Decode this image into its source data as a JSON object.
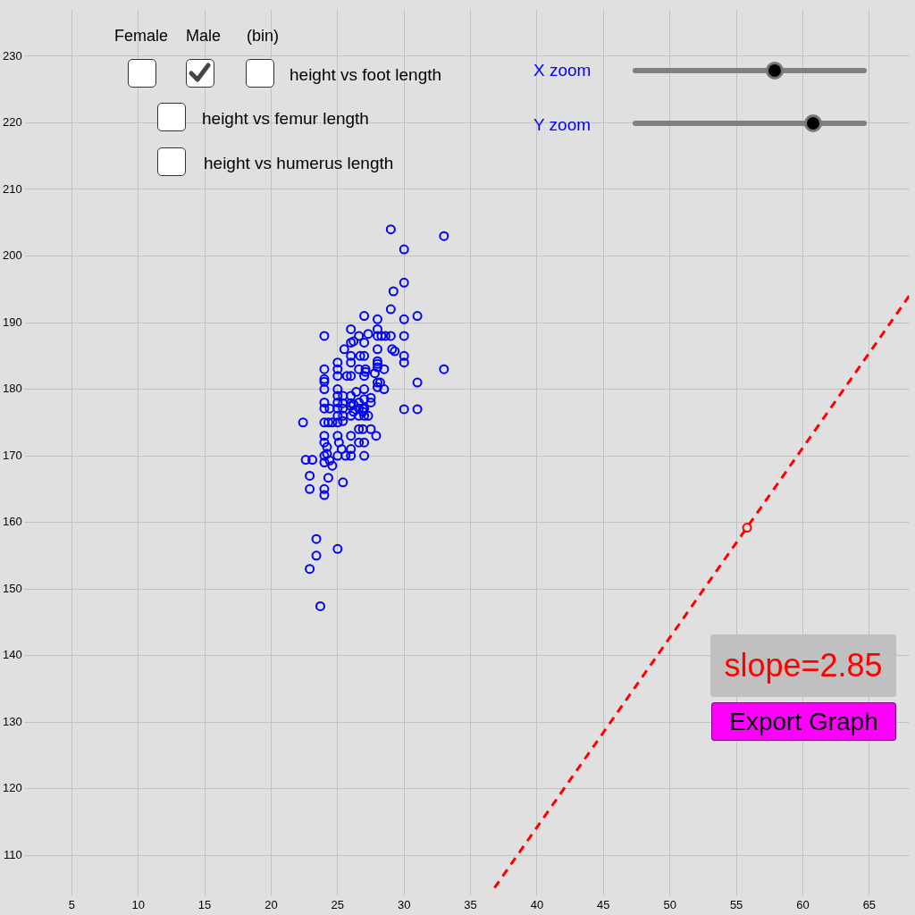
{
  "chart_data": {
    "type": "scatter",
    "xlim": [
      2,
      68
    ],
    "ylim": [
      105,
      237
    ],
    "xticks": [
      5,
      10,
      15,
      20,
      25,
      30,
      35,
      40,
      45,
      50,
      55,
      60,
      65
    ],
    "yticks": [
      110,
      120,
      130,
      140,
      150,
      160,
      170,
      180,
      190,
      200,
      210,
      220,
      230
    ],
    "grid": true,
    "annotations": [
      "Female",
      "Male",
      "(bin)",
      "height vs foot length",
      "height vs femur length",
      "height vs humerus length",
      "X zoom",
      "Y zoom",
      "slope=2.85",
      "Export Graph"
    ],
    "series": [
      {
        "color": "#0000ff",
        "marker": "circle",
        "x": [
          29,
          33,
          30,
          30,
          29.2,
          29,
          27,
          28,
          30,
          31,
          26,
          28,
          24,
          26.6,
          27.3,
          28,
          28.3,
          28.6,
          29,
          30,
          26,
          26.2,
          27,
          25.5,
          28,
          29.1,
          29.3,
          26,
          26.7,
          27,
          30,
          25,
          26,
          28,
          28,
          28,
          30,
          24,
          25,
          26.6,
          27.1,
          28.5,
          33,
          24,
          24,
          25,
          25.7,
          26,
          27,
          27.1,
          27.8,
          31,
          28,
          28.2,
          24,
          25,
          26.4,
          27,
          28,
          28.5,
          25,
          25.4,
          26,
          24,
          25,
          25.4,
          26,
          26.6,
          27,
          27.5,
          27.5,
          24,
          24.4,
          25,
          25.4,
          26,
          26.2,
          26.6,
          26.9,
          27,
          30,
          31,
          25,
          25.4,
          26,
          26.6,
          27,
          27.3,
          26.2,
          26.9,
          22.4,
          24,
          24.3,
          24.6,
          25,
          25.4,
          26.6,
          26.9,
          27.5,
          27.9,
          24,
          25,
          26,
          24,
          25.1,
          26.6,
          27,
          24.2,
          25.3,
          26,
          24,
          24.2,
          25,
          25.6,
          26,
          27,
          22.6,
          23.1,
          24,
          24.4,
          24.6,
          22.9,
          24.3,
          25.4,
          22.9,
          24,
          24,
          23.4,
          25,
          23.4,
          22.9,
          23.7
        ],
        "values": [
          204,
          203,
          201,
          196,
          194.7,
          192,
          191,
          190.5,
          190.5,
          191,
          189,
          189,
          188,
          188,
          188.3,
          188,
          188,
          188,
          188,
          188,
          187,
          187.2,
          187,
          186,
          186,
          186,
          185.7,
          185,
          185,
          185,
          185,
          184,
          184,
          184.2,
          183.8,
          183.3,
          184,
          183,
          183,
          183,
          183,
          183,
          183,
          181.5,
          181.1,
          182,
          182,
          182,
          182,
          182.6,
          182.4,
          181,
          181,
          181,
          180,
          180,
          179.6,
          180,
          180.3,
          180,
          179,
          179,
          179,
          178,
          178,
          177.9,
          177.9,
          178,
          178.5,
          178.7,
          178,
          177.1,
          177.1,
          177.1,
          177.1,
          177.5,
          177.7,
          177.1,
          177.1,
          177.1,
          177,
          177,
          176,
          176,
          176,
          176,
          176,
          176,
          176.6,
          176.6,
          175,
          175,
          175,
          175,
          175,
          175.2,
          174,
          174,
          174,
          173,
          173,
          173,
          173,
          172,
          172,
          172,
          172,
          171.3,
          171,
          171,
          170,
          170.3,
          170,
          170,
          170,
          170,
          169.4,
          169.4,
          169,
          169.3,
          168.5,
          167,
          166.7,
          166,
          165,
          165,
          164.1,
          157.5,
          156,
          155,
          153,
          147.4
        ]
      },
      {
        "type": "line",
        "color": "#ff0000",
        "marker": "none",
        "line_style": "dashed",
        "x": [
          36.8,
          68
        ],
        "values": [
          105.1,
          194
        ]
      },
      {
        "color": "#ff0000",
        "marker": "circle",
        "x": [
          55.8
        ],
        "values": [
          159.2
        ]
      }
    ]
  }
}
